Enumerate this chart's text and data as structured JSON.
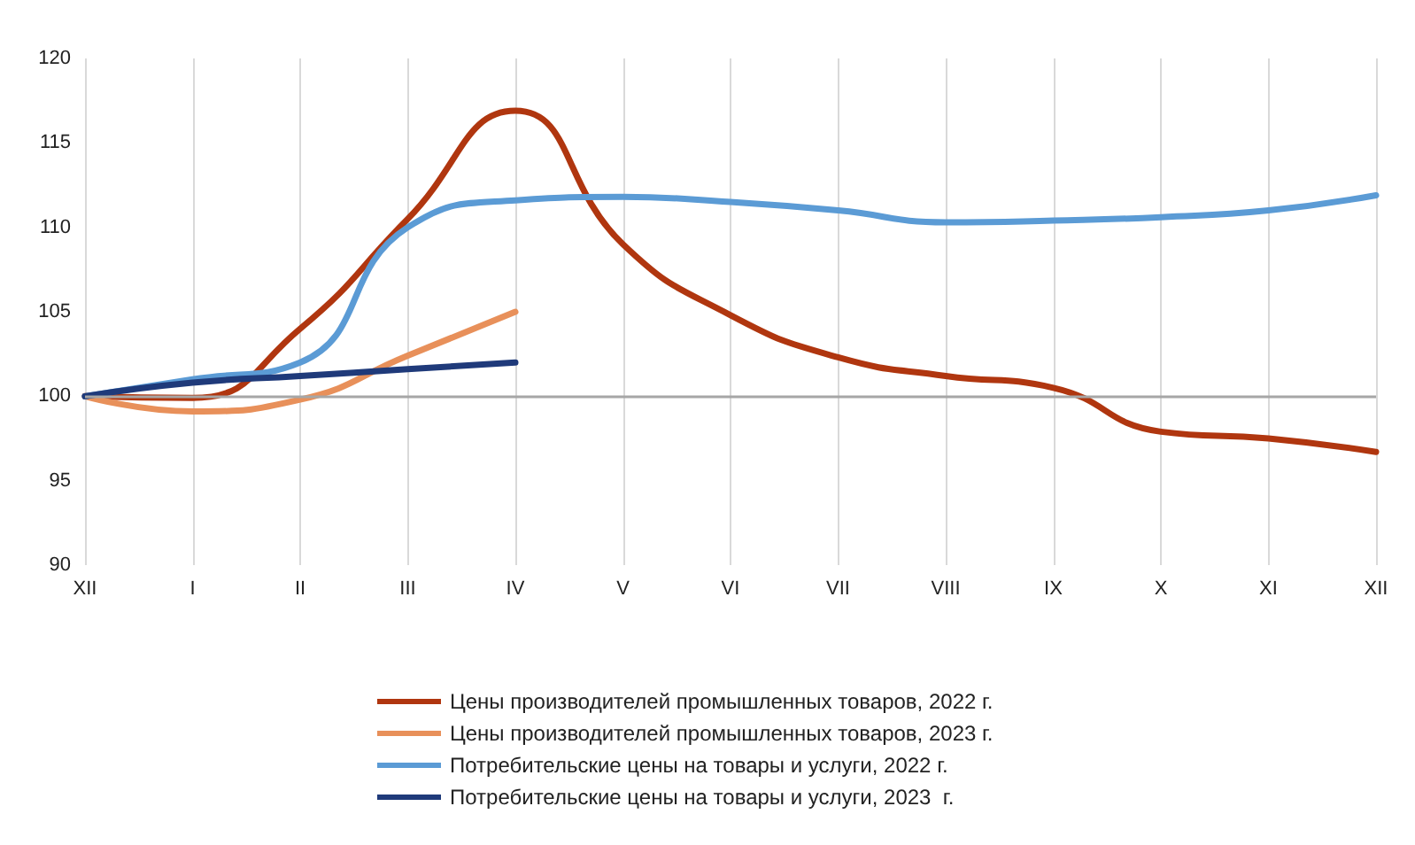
{
  "chart_data": {
    "type": "line",
    "categories": [
      "XII",
      "I",
      "II",
      "III",
      "IV",
      "V",
      "VI",
      "VII",
      "VIII",
      "IX",
      "X",
      "XI",
      "XII"
    ],
    "series": [
      {
        "name": "Цены производителей промышленных товаров, 2022 г.",
        "color": "#b0360f",
        "values": [
          100,
          99.9,
          104,
          110.5,
          116.9,
          109,
          104.8,
          102.3,
          101.2,
          100.5,
          97.9,
          97.5,
          96.7
        ]
      },
      {
        "name": "Цены производителей промышленных товаров, 2023 г.",
        "color": "#e8905a",
        "values": [
          100,
          99.1,
          99.8,
          102.4,
          105,
          null,
          null,
          null,
          null,
          null,
          null,
          null,
          null
        ]
      },
      {
        "name": "Потребительские цены на товары и услуги, 2022 г.",
        "color": "#5b9bd5",
        "values": [
          100,
          101,
          102,
          110,
          111.6,
          111.8,
          111.5,
          111,
          110.3,
          110.4,
          110.6,
          111,
          111.9
        ]
      },
      {
        "name": "Потребительские цены на товары и услуги, 2023  г.",
        "color": "#1f3a7a",
        "values": [
          100,
          100.8,
          101.2,
          101.6,
          102,
          null,
          null,
          null,
          null,
          null,
          null,
          null,
          null
        ]
      }
    ],
    "ylim": [
      90,
      120
    ],
    "yticks": [
      90,
      95,
      100,
      105,
      110,
      115,
      120
    ],
    "ref_lines": [
      {
        "axis": "y",
        "value": 100,
        "color": "#a6a6a6"
      }
    ],
    "grid": "x",
    "legend": "bottom",
    "marker": "none",
    "line_style": "solid"
  }
}
